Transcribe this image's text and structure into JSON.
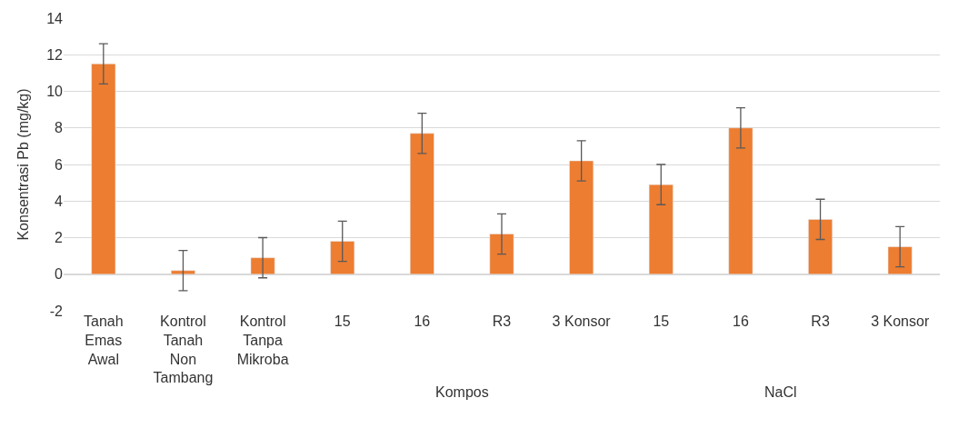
{
  "chart_data": {
    "type": "bar",
    "ylabel": "Konsentrasi Pb (mg/kg)",
    "categories": [
      "Tanah Emas Awal",
      "Kontrol Tanah Non Tambang",
      "Kontrol Tanpa Mikroba",
      "15",
      "16",
      "R3",
      "3 Konsor",
      "15",
      "16",
      "R3",
      "3 Konsor"
    ],
    "values": [
      11.5,
      0.2,
      0.9,
      1.8,
      7.7,
      2.2,
      6.2,
      4.9,
      8.0,
      3.0,
      1.5
    ],
    "errors": [
      1.1,
      1.1,
      1.1,
      1.1,
      1.1,
      1.1,
      1.1,
      1.1,
      1.1,
      1.1,
      1.1
    ],
    "color": "#ed7d31",
    "ylim": [
      -2,
      14
    ],
    "yticks": [
      -2,
      0,
      2,
      4,
      6,
      8,
      10,
      12,
      14
    ],
    "grid": "y",
    "legend": false,
    "annotations": [
      "Kompos",
      "NaCl"
    ]
  }
}
